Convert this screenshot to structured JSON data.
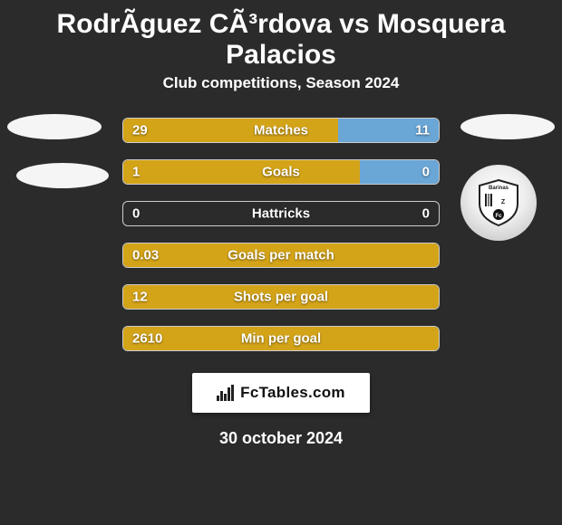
{
  "title": "RodrÃ­guez CÃ³rdova vs Mosquera Palacios",
  "subtitle": "Club competitions, Season 2024",
  "date": "30 october 2024",
  "brand": "FcTables.com",
  "colors": {
    "left_fill": "#d4a418",
    "right_fill": "#6aa6d6",
    "background": "#2b2b2b",
    "bar_border": "#cccccc"
  },
  "right_club_label": "Barinas",
  "stats": [
    {
      "label": "Matches",
      "left_val": "29",
      "right_val": "11",
      "left_pct": 68,
      "right_pct": 32
    },
    {
      "label": "Goals",
      "left_val": "1",
      "right_val": "0",
      "left_pct": 75,
      "right_pct": 25
    },
    {
      "label": "Hattricks",
      "left_val": "0",
      "right_val": "0",
      "left_pct": 0,
      "right_pct": 0
    },
    {
      "label": "Goals per match",
      "left_val": "0.03",
      "right_val": "",
      "left_pct": 100,
      "right_pct": 0
    },
    {
      "label": "Shots per goal",
      "left_val": "12",
      "right_val": "",
      "left_pct": 100,
      "right_pct": 0
    },
    {
      "label": "Min per goal",
      "left_val": "2610",
      "right_val": "",
      "left_pct": 100,
      "right_pct": 0
    }
  ]
}
